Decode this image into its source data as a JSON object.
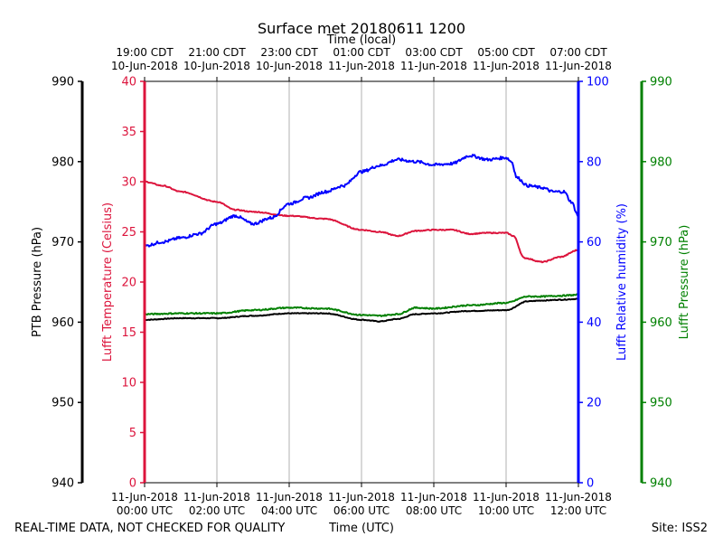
{
  "chart_data": {
    "type": "line",
    "title": "Surface met 20180611 1200",
    "top_axis_label": "Time (local)",
    "xlabel": "Time (UTC)",
    "footer_left": "REAL-TIME DATA, NOT CHECKED FOR QUALITY",
    "footer_right": "Site: ISS2",
    "x_hours_utc": [
      0,
      2,
      4,
      6,
      8,
      10,
      12
    ],
    "xlim": [
      0,
      12
    ],
    "bottom_ticks": [
      {
        "line1": "11-Jun-2018",
        "line2": "00:00 UTC"
      },
      {
        "line1": "11-Jun-2018",
        "line2": "02:00 UTC"
      },
      {
        "line1": "11-Jun-2018",
        "line2": "04:00 UTC"
      },
      {
        "line1": "11-Jun-2018",
        "line2": "06:00 UTC"
      },
      {
        "line1": "11-Jun-2018",
        "line2": "08:00 UTC"
      },
      {
        "line1": "11-Jun-2018",
        "line2": "10:00 UTC"
      },
      {
        "line1": "11-Jun-2018",
        "line2": "12:00 UTC"
      }
    ],
    "top_ticks": [
      {
        "line1": "19:00 CDT",
        "line2": "10-Jun-2018"
      },
      {
        "line1": "21:00 CDT",
        "line2": "10-Jun-2018"
      },
      {
        "line1": "23:00 CDT",
        "line2": "10-Jun-2018"
      },
      {
        "line1": "01:00 CDT",
        "line2": "11-Jun-2018"
      },
      {
        "line1": "03:00 CDT",
        "line2": "11-Jun-2018"
      },
      {
        "line1": "05:00 CDT",
        "line2": "11-Jun-2018"
      },
      {
        "line1": "07:00 CDT",
        "line2": "11-Jun-2018"
      }
    ],
    "axes": {
      "ptb": {
        "label": "PTB Pressure (hPa)",
        "color": "#000000",
        "ylim": [
          940,
          990
        ],
        "ticks": [
          940,
          950,
          960,
          970,
          980,
          990
        ]
      },
      "temp": {
        "label": "Lufft Temperature (Celsius)",
        "color": "#dc143c",
        "ylim": [
          0,
          40
        ],
        "ticks": [
          0,
          5,
          10,
          15,
          20,
          25,
          30,
          35,
          40
        ]
      },
      "rh": {
        "label": "Lufft Relative humidity (%)",
        "color": "#0000ff",
        "ylim": [
          0,
          100
        ],
        "ticks": [
          0,
          20,
          40,
          60,
          80,
          100
        ]
      },
      "lufft_p": {
        "label": "Lufft Pressure (hPa)",
        "color": "#008000",
        "ylim": [
          940,
          990
        ],
        "ticks": [
          940,
          950,
          960,
          970,
          980,
          990
        ]
      }
    },
    "series": [
      {
        "name": "PTB Pressure",
        "axis": "ptb",
        "color": "#000000",
        "noise": 0.05,
        "x": [
          0,
          1,
          2,
          3,
          4,
          5,
          6,
          6.5,
          7,
          7.5,
          8,
          9,
          10,
          10.6,
          11,
          11.5,
          12
        ],
        "y": [
          960.3,
          960.5,
          960.5,
          960.8,
          961.1,
          961.1,
          960.3,
          960.1,
          960.4,
          961.0,
          961.1,
          961.4,
          961.5,
          962.6,
          962.7,
          962.8,
          962.9
        ]
      },
      {
        "name": "Lufft Temperature",
        "axis": "temp",
        "color": "#dc143c",
        "noise": 0.05,
        "x": [
          0,
          0.5,
          1,
          2,
          2.5,
          3,
          4,
          5,
          6,
          6.5,
          7,
          7.5,
          8,
          8.5,
          9,
          9.5,
          10,
          10.2,
          10.5,
          11,
          11.5,
          12
        ],
        "y": [
          30.0,
          29.6,
          29.0,
          28.0,
          27.2,
          27.0,
          26.6,
          26.3,
          25.2,
          25.0,
          24.6,
          25.1,
          25.2,
          25.2,
          24.8,
          24.9,
          24.9,
          24.6,
          22.4,
          22.0,
          22.5,
          23.2
        ]
      },
      {
        "name": "Lufft Relative humidity",
        "axis": "rh",
        "color": "#0000ff",
        "noise": 0.35,
        "x": [
          0,
          0.5,
          1,
          1.5,
          2,
          2.5,
          3,
          3.5,
          4,
          4.5,
          5,
          5.5,
          6,
          6.5,
          7,
          7.5,
          8,
          8.5,
          9,
          9.5,
          10,
          10.15,
          10.3,
          10.6,
          11,
          11.3,
          11.6,
          11.8,
          12
        ],
        "y": [
          59,
          60,
          61,
          62,
          64.5,
          66.5,
          64.5,
          66,
          69.5,
          71,
          72.5,
          74,
          77.5,
          79,
          80.5,
          80,
          79.2,
          79.5,
          81.5,
          80.5,
          81,
          80,
          76,
          74,
          73.5,
          72.5,
          72.5,
          70,
          66.5
        ]
      },
      {
        "name": "Lufft Pressure",
        "axis": "lufft_p",
        "color": "#008000",
        "noise": 0.08,
        "x": [
          0,
          1,
          2,
          3,
          4,
          5,
          6,
          6.5,
          7,
          7.5,
          8,
          9,
          10,
          10.6,
          11,
          11.5,
          12
        ],
        "y": [
          961.0,
          961.1,
          961.1,
          961.5,
          961.8,
          961.7,
          960.9,
          960.8,
          961.0,
          961.8,
          961.7,
          962.1,
          962.4,
          963.2,
          963.2,
          963.3,
          963.4
        ]
      }
    ]
  }
}
